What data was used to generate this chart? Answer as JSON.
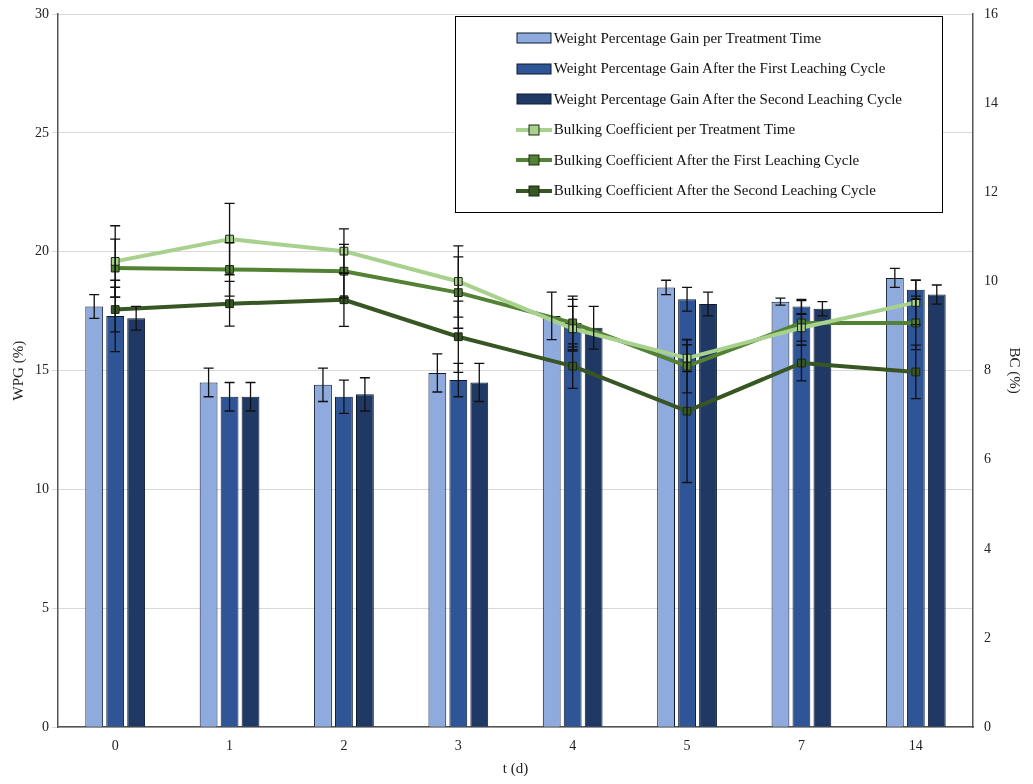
{
  "chart_data": {
    "type": "bar",
    "xlabel": "t (d)",
    "ylabel": "WPG (%)",
    "y2label": "BC (%)",
    "categories": [
      "0",
      "1",
      "2",
      "3",
      "4",
      "5",
      "7",
      "14"
    ],
    "ylim": [
      0,
      30
    ],
    "yticks": [
      0,
      5,
      10,
      15,
      20,
      25,
      30
    ],
    "y2lim": [
      0,
      16
    ],
    "y2ticks": [
      0,
      2,
      4,
      6,
      8,
      10,
      12,
      14,
      16
    ],
    "grid": "y",
    "legend": "top right",
    "marker": "square",
    "series": [
      {
        "name": "Weight Percentage Gain per Treatment Time",
        "color": "#8faadc",
        "values": [
          17.7,
          14.5,
          14.4,
          14.9,
          17.3,
          18.5,
          17.9,
          18.9
        ],
        "errors": [
          0.5,
          0.6,
          0.7,
          0.8,
          1.0,
          0.3,
          0.15,
          0.4
        ]
      },
      {
        "name": "Weight Percentage Gain After the First Leaching Cycle",
        "color": "#2f5597",
        "values": [
          17.3,
          13.9,
          13.9,
          14.6,
          17.0,
          18.0,
          17.7,
          18.4
        ],
        "errors": [
          1.5,
          0.6,
          0.7,
          0.7,
          1.0,
          0.5,
          0.3,
          0.4
        ]
      },
      {
        "name": "Weight Percentage Gain After the Second Leaching Cycle",
        "color": "#1f3864",
        "values": [
          17.2,
          13.9,
          14.0,
          14.5,
          16.8,
          17.8,
          17.6,
          18.2
        ],
        "errors": [
          0.5,
          0.6,
          0.7,
          0.8,
          0.9,
          0.5,
          0.3,
          0.4
        ]
      },
      {
        "name": "Bulking Coefficient per Treatment Time",
        "type": "line",
        "axis": "y2",
        "color": "#a9d18e",
        "values": [
          10.45,
          10.95,
          10.68,
          10.0,
          8.94,
          8.28,
          8.96,
          9.53
        ],
        "errors": [
          0.8,
          0.8,
          0.5,
          0.8,
          0.5,
          0.3,
          0.3,
          0.5
        ]
      },
      {
        "name": "Bulking Coefficient After the First Leaching Cycle",
        "type": "line",
        "axis": "y2",
        "color": "#548235",
        "values": [
          10.3,
          10.27,
          10.23,
          9.75,
          9.07,
          8.1,
          9.07,
          9.07
        ],
        "errors": [
          0.65,
          0.6,
          0.6,
          0.8,
          0.6,
          0.6,
          0.5,
          0.6
        ]
      },
      {
        "name": "Bulking Coefficient After the Second Leaching Cycle",
        "type": "line",
        "axis": "y2",
        "color": "#375623",
        "values": [
          9.37,
          9.5,
          9.59,
          8.76,
          8.1,
          7.09,
          8.17,
          7.97
        ],
        "errors": [
          0.5,
          0.5,
          0.6,
          0.8,
          0.5,
          1.6,
          0.4,
          0.6
        ]
      }
    ]
  }
}
